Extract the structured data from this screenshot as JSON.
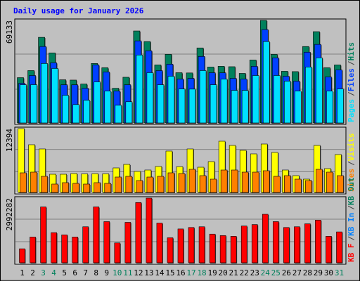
{
  "chart_data": [
    {
      "type": "bar",
      "title": "Daily usage for January 2026",
      "title_color": "#0000ff",
      "ylim": [
        0,
        69133
      ],
      "yticks": [
        69133
      ],
      "legend_separator": "/",
      "separator_color": "#404040",
      "series": [
        {
          "name": "Hits",
          "color": "#00805c",
          "values": [
            30528,
            35298,
            57717,
            47223,
            29097,
            28900,
            26235,
            40068,
            37206,
            23373,
            30800,
            62010,
            54855,
            39114,
            46269,
            33867,
            33700,
            50562,
            37683,
            38160,
            37900,
            33390,
            42453,
            69133,
            46200,
            34821,
            34600,
            51516,
            61533,
            37206,
            39114
          ]
        },
        {
          "name": "Files",
          "color": "#0040ff",
          "values": [
            26712,
            31959,
            51516,
            40545,
            25758,
            25700,
            23373,
            39114,
            34344,
            21465,
            25758,
            55332,
            48654,
            35298,
            39591,
            29574,
            30051,
            44838,
            33867,
            33800,
            30051,
            29574,
            38160,
            62964,
            43884,
            31482,
            28143,
            47700,
            52947,
            31005,
            35775
          ]
        },
        {
          "name": "Pages",
          "color": "#00e0ff",
          "values": [
            25758,
            25800,
            40068,
            36729,
            18603,
            12402,
            15264,
            27666,
            21465,
            11925,
            14310,
            45792,
            33867,
            25758,
            31482,
            22896,
            22800,
            35298,
            25758,
            29574,
            21942,
            21942,
            31959,
            54855,
            31959,
            28143,
            21465,
            37683,
            43884,
            21465,
            22896
          ]
        }
      ]
    },
    {
      "type": "bar",
      "ylim": [
        0,
        12394
      ],
      "yticks": [
        12394
      ],
      "series": [
        {
          "name": "Visits",
          "color": "#ffff00",
          "values": [
            12394,
            9262,
            8444,
            3541,
            3541,
            3677,
            3600,
            3650,
            3620,
            4767,
            5448,
            4086,
            4358,
            5039,
            8036,
            5000,
            8444,
            4903,
            5993,
            9943,
            9125,
            8172,
            7491,
            9398,
            7763,
            4358,
            3269,
            2588,
            9125,
            4631,
            7355
          ]
        },
        {
          "name": "Sites",
          "color": "#ff8000",
          "values": [
            3814,
            3950,
            3133,
            1634,
            1907,
            1771,
            1634,
            1907,
            1771,
            2996,
            3133,
            2315,
            2996,
            3133,
            3814,
            3677,
            4495,
            3269,
            2588,
            4358,
            4358,
            3950,
            3950,
            4222,
            3133,
            3269,
            2588,
            2315,
            4495,
            3950,
            3269
          ]
        }
      ]
    },
    {
      "type": "bar",
      "ylim": [
        0,
        2992282
      ],
      "yticks": [
        2992282
      ],
      "categories": [
        "1",
        "2",
        "3",
        "4",
        "5",
        "6",
        "7",
        "8",
        "9",
        "10",
        "11",
        "12",
        "13",
        "14",
        "15",
        "16",
        "17",
        "18",
        "19",
        "20",
        "21",
        "22",
        "23",
        "24",
        "25",
        "26",
        "27",
        "28",
        "29",
        "30",
        "31"
      ],
      "category_colors": [
        "#000000",
        "#000000",
        "#00805c",
        "#00805c",
        "#000000",
        "#000000",
        "#000000",
        "#000000",
        "#000000",
        "#00805c",
        "#00805c",
        "#000000",
        "#000000",
        "#000000",
        "#000000",
        "#000000",
        "#00805c",
        "#00805c",
        "#000000",
        "#000000",
        "#000000",
        "#000000",
        "#000000",
        "#00805c",
        "#00805c",
        "#000000",
        "#000000",
        "#000000",
        "#000000",
        "#000000",
        "#00805c"
      ],
      "legend": [
        {
          "name": "KB F",
          "color": "#ff0000"
        },
        {
          "name": "KB In",
          "color": "#0080ff"
        },
        {
          "name": "KB Out",
          "color": "#00805c"
        }
      ],
      "series": [
        {
          "name": "KB F",
          "color": "#ff0000",
          "values": [
            646000,
            1190000,
            2584000,
            1394000,
            1292000,
            1190000,
            1666000,
            2584000,
            1904000,
            918000,
            1870000,
            2788000,
            2992282,
            1836000,
            1156000,
            1564000,
            1632000,
            1666000,
            1326000,
            1258000,
            1224000,
            1700000,
            1768000,
            2244000,
            1904000,
            1632000,
            1666000,
            1802000,
            1972000,
            1224000,
            1428000
          ]
        }
      ]
    }
  ]
}
